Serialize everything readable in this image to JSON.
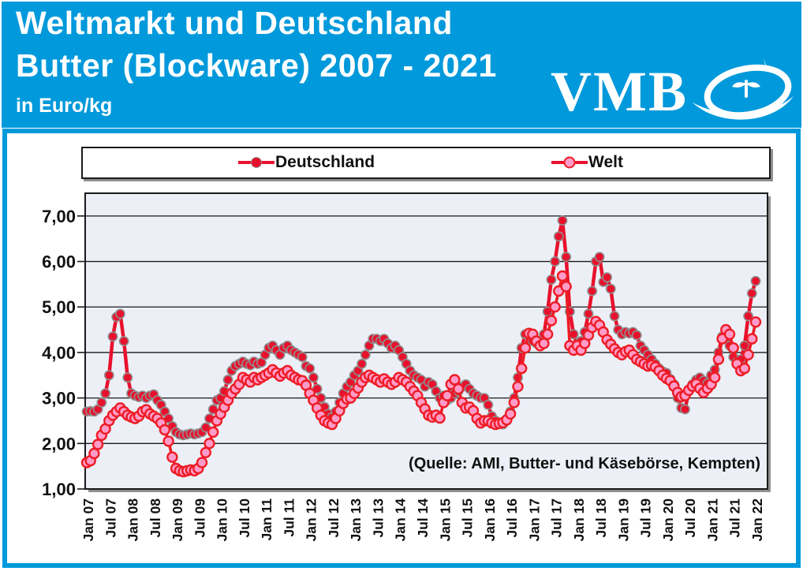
{
  "header": {
    "title_line1": "Weltmarkt und Deutschland",
    "title_line2": "Butter (Blockware) 2007 - 2021",
    "subtitle": "in Euro/kg",
    "logo_text": "VMB",
    "bg_color": "#0099DB"
  },
  "legend": {
    "items": [
      {
        "label": "Deutschland",
        "marker_fill": "#E8112D",
        "marker_stroke": "#9a9a9a"
      },
      {
        "label": "Welt",
        "marker_fill": "#FF9BC8",
        "marker_stroke": "#EE1C25"
      }
    ]
  },
  "source_note": "(Quelle: AMI, Butter- und Käsebörse, Kempten)",
  "chart_data": {
    "type": "line",
    "title": "Weltmarkt und Deutschland Butter (Blockware) 2007 - 2021",
    "ylabel": "Euro/kg",
    "x_start": "Jan 2007",
    "x_end": "Jan 2022",
    "frequency": "monthly",
    "ylim": [
      1.0,
      7.5
    ],
    "grid": "horizontal",
    "legend_position": "top",
    "plot_bg": "#ECEFF6",
    "ytick_labels": [
      "1,00",
      "2,00",
      "3,00",
      "4,00",
      "5,00",
      "6,00",
      "7,00"
    ],
    "xtick_labels": [
      "Jan 07",
      "Jul 07",
      "Jan 08",
      "Jul 08",
      "Jan 09",
      "Jul 09",
      "Jan 10",
      "Jul 10",
      "Jan 11",
      "Jul 11",
      "Jan 12",
      "Jul 12",
      "Jan 13",
      "Jul 13",
      "Jan 14",
      "Jul 14",
      "Jan 15",
      "Jul 15",
      "Jan 16",
      "Jul 16",
      "Jan 17",
      "Jul 17",
      "Jan 18",
      "Jul 18",
      "Jan 19",
      "Jul 19",
      "Jan 20",
      "Jul 20",
      "Jan 21",
      "Jul 21",
      "Jan 22"
    ],
    "series": [
      {
        "name": "Deutschland",
        "line_color": "#E8112D",
        "line_width": 4.5,
        "marker_fill": "#E8112D",
        "marker_stroke": "#8f8f8f",
        "marker_stroke_width": 1.6,
        "marker_radius": 5.6,
        "values": [
          2.7,
          2.71,
          2.7,
          2.75,
          2.9,
          3.1,
          3.5,
          4.35,
          4.78,
          4.85,
          4.25,
          3.45,
          3.1,
          3.05,
          3.02,
          3.05,
          3.0,
          3.05,
          3.08,
          2.95,
          2.85,
          2.7,
          2.55,
          2.38,
          2.25,
          2.2,
          2.18,
          2.2,
          2.22,
          2.2,
          2.22,
          2.25,
          2.35,
          2.55,
          2.75,
          2.95,
          3.0,
          3.15,
          3.4,
          3.6,
          3.7,
          3.75,
          3.8,
          3.75,
          3.72,
          3.8,
          3.75,
          3.78,
          3.95,
          4.1,
          4.15,
          4.05,
          3.95,
          4.1,
          4.15,
          4.05,
          4.0,
          3.95,
          3.9,
          3.7,
          3.65,
          3.45,
          3.2,
          3.0,
          2.8,
          2.65,
          2.58,
          2.7,
          2.9,
          3.1,
          3.25,
          3.35,
          3.5,
          3.6,
          3.75,
          3.95,
          4.15,
          4.3,
          4.3,
          4.25,
          4.3,
          4.2,
          4.1,
          4.15,
          4.05,
          3.9,
          3.75,
          3.6,
          3.5,
          3.45,
          3.4,
          3.25,
          3.35,
          3.3,
          3.15,
          3.0,
          3.05,
          2.95,
          3.0,
          3.1,
          3.15,
          3.25,
          3.3,
          3.2,
          3.1,
          3.05,
          3.0,
          3.0,
          2.85,
          2.6,
          2.5,
          2.45,
          2.42,
          2.5,
          2.7,
          3.0,
          3.45,
          4.1,
          4.4,
          4.35,
          4.25,
          4.2,
          4.15,
          4.4,
          4.9,
          5.6,
          6.0,
          6.55,
          6.9,
          6.1,
          4.9,
          4.4,
          4.15,
          4.25,
          4.45,
          4.85,
          5.35,
          6.0,
          6.1,
          5.55,
          5.65,
          5.4,
          4.8,
          4.5,
          4.4,
          4.45,
          4.42,
          4.45,
          4.38,
          4.15,
          4.05,
          3.95,
          3.85,
          3.75,
          3.65,
          3.58,
          3.55,
          3.42,
          3.3,
          3.0,
          2.78,
          2.75,
          3.15,
          3.3,
          3.4,
          3.45,
          3.38,
          3.32,
          3.5,
          3.62,
          4.0,
          4.35,
          4.45,
          4.15,
          3.9,
          3.8,
          3.85,
          4.15,
          4.8,
          5.3,
          5.57
        ]
      },
      {
        "name": "Welt",
        "line_color": "#EE1C25",
        "line_width": 3.6,
        "marker_fill": "#FF9BC8",
        "marker_stroke": "#EE1C25",
        "marker_stroke_width": 2.4,
        "marker_radius": 6,
        "values": [
          1.58,
          1.62,
          1.78,
          1.98,
          2.18,
          2.32,
          2.5,
          2.62,
          2.7,
          2.78,
          2.7,
          2.62,
          2.58,
          2.55,
          2.6,
          2.7,
          2.74,
          2.65,
          2.6,
          2.55,
          2.45,
          2.3,
          2.05,
          1.7,
          1.45,
          1.4,
          1.38,
          1.4,
          1.42,
          1.4,
          1.45,
          1.58,
          1.8,
          2.0,
          2.25,
          2.5,
          2.65,
          2.8,
          2.95,
          3.1,
          3.2,
          3.3,
          3.45,
          3.4,
          3.35,
          3.45,
          3.4,
          3.45,
          3.5,
          3.55,
          3.62,
          3.55,
          3.48,
          3.55,
          3.6,
          3.5,
          3.45,
          3.4,
          3.38,
          3.28,
          3.1,
          2.95,
          2.78,
          2.62,
          2.5,
          2.45,
          2.42,
          2.55,
          2.72,
          2.88,
          2.98,
          3.0,
          3.1,
          3.22,
          3.35,
          3.45,
          3.5,
          3.45,
          3.4,
          3.35,
          3.42,
          3.35,
          3.3,
          3.35,
          3.45,
          3.4,
          3.35,
          3.25,
          3.15,
          3.05,
          2.9,
          2.76,
          2.62,
          2.58,
          2.62,
          2.56,
          2.9,
          3.05,
          3.3,
          3.4,
          3.2,
          2.9,
          2.78,
          2.8,
          2.72,
          2.55,
          2.45,
          2.5,
          2.5,
          2.45,
          2.42,
          2.44,
          2.46,
          2.52,
          2.65,
          2.9,
          3.25,
          3.65,
          4.1,
          4.42,
          4.4,
          4.25,
          4.15,
          4.2,
          4.4,
          4.7,
          5.0,
          5.35,
          5.68,
          5.45,
          4.15,
          4.05,
          4.15,
          4.05,
          4.2,
          4.38,
          4.55,
          4.68,
          4.6,
          4.45,
          4.28,
          4.18,
          4.08,
          4.0,
          3.95,
          4.02,
          4.05,
          3.95,
          3.85,
          3.8,
          3.75,
          3.7,
          3.72,
          3.68,
          3.6,
          3.5,
          3.43,
          3.38,
          3.26,
          3.12,
          3.03,
          3.05,
          3.17,
          3.26,
          3.31,
          3.21,
          3.12,
          3.21,
          3.3,
          3.45,
          3.85,
          4.3,
          4.5,
          4.4,
          4.1,
          3.75,
          3.6,
          3.65,
          3.95,
          4.3,
          4.67
        ]
      }
    ]
  }
}
